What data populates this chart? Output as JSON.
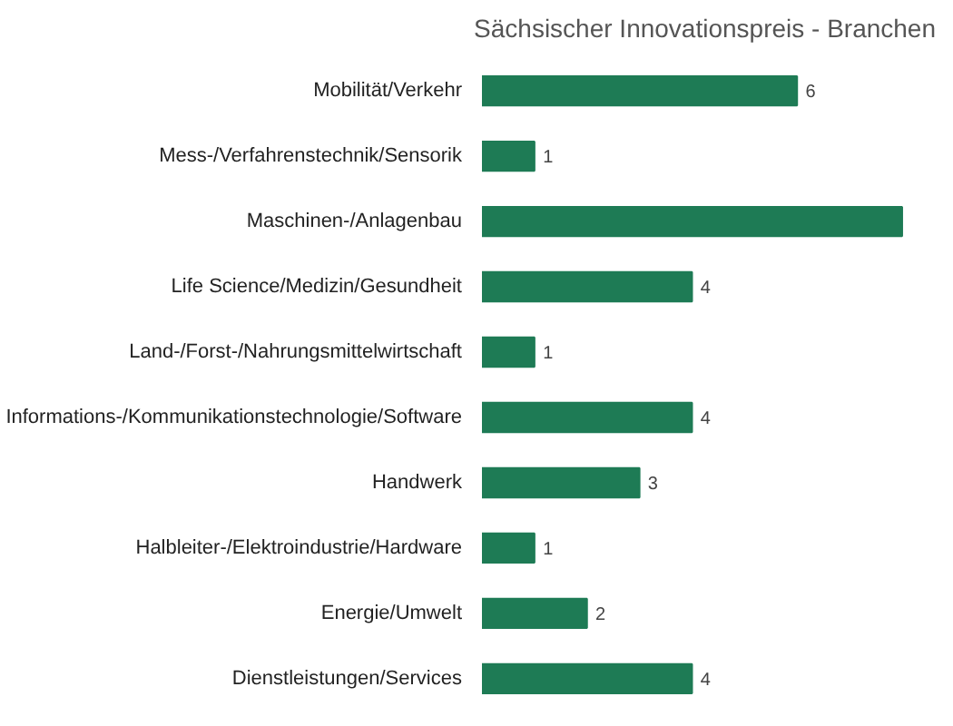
{
  "chart_data": {
    "type": "bar",
    "orientation": "horizontal",
    "title": "Sächsischer Innovationspreis - Branchen",
    "categories": [
      "Mobilität/Verkehr",
      "Mess-/Verfahrenstechnik/Sensorik",
      "Maschinen-/Anlagenbau",
      "Life Science/Medizin/Gesundheit",
      "Land-/Forst-/Nahrungsmittelwirtschaft",
      "Informations-/Kommunikationstechnologie/Software",
      "Handwerk",
      "Halbleiter-/Elektroindustrie/Hardware",
      "Energie/Umwelt",
      "Dienstleistungen/Services"
    ],
    "values": [
      6,
      1,
      8,
      4,
      1,
      4,
      3,
      1,
      2,
      4
    ],
    "value_labels": [
      "6",
      "1",
      null,
      "4",
      "1",
      "4",
      "3",
      "1",
      "2",
      "4"
    ],
    "color": "#1e7b55"
  }
}
